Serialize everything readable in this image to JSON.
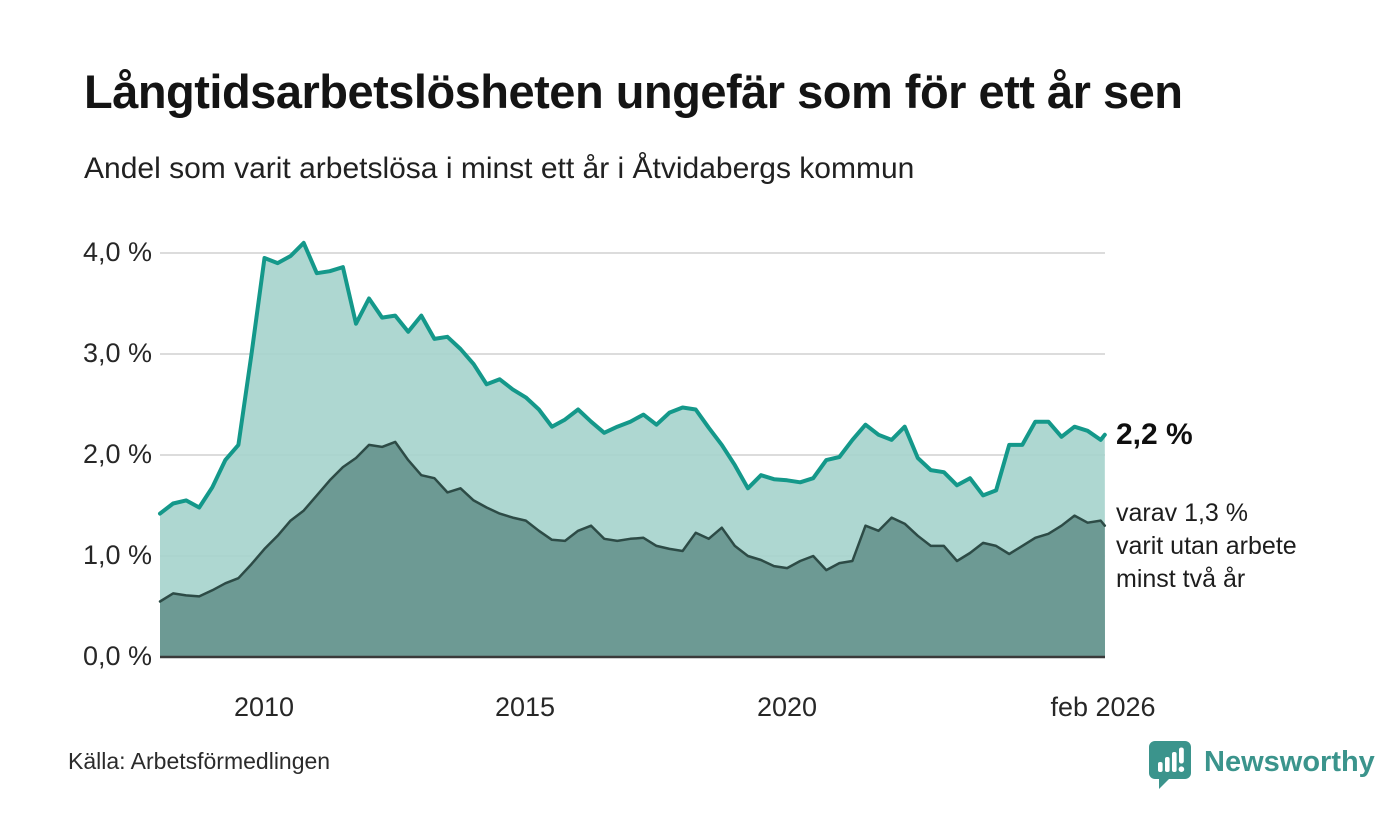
{
  "header": {
    "title": "Långtidsarbetslösheten ungefär som för ett år sen",
    "subtitle": "Andel som varit arbetslösa i minst ett år i Åtvidabergs kommun"
  },
  "annotations": {
    "latest_value": "2,2 %",
    "secondary_line1": "varav 1,3 %",
    "secondary_line2": "varit utan arbete",
    "secondary_line3": "minst två år"
  },
  "footer": {
    "source": "Källa: Arbetsförmedlingen",
    "brand": "Newsworthy"
  },
  "colors": {
    "series1_line": "#14988a",
    "series1_fill": "#a5d3cc",
    "series2_line": "#2d4b46",
    "series2_fill": "#6a9892",
    "gridline": "#dcdcdc",
    "baseline": "#3a3a3a",
    "brand_teal": "#3b948c"
  },
  "chart_data": {
    "type": "area",
    "title": "Långtidsarbetslösheten ungefär som för ett år sen",
    "subtitle": "Andel som varit arbetslösa i minst ett år i Åtvidabergs kommun",
    "unit": "%",
    "grid": "horizontal",
    "legend": "none",
    "x_axis": {
      "range": [
        2008.0,
        2026.083
      ],
      "tick_labels": [
        "2010",
        "2015",
        "2020",
        "feb 2026"
      ],
      "tick_positions": [
        2010,
        2015,
        2020,
        2026.083
      ]
    },
    "y_axis": {
      "range": [
        0,
        4.3
      ],
      "tick_values": [
        0,
        1,
        2,
        3,
        4
      ],
      "tick_labels": [
        "0,0 %",
        "1,0 %",
        "2,0 %",
        "3,0 %",
        "4,0 %"
      ]
    },
    "x": [
      2008.0,
      2008.25,
      2008.5,
      2008.75,
      2009.0,
      2009.25,
      2009.5,
      2009.75,
      2010.0,
      2010.25,
      2010.5,
      2010.75,
      2011.0,
      2011.25,
      2011.5,
      2011.75,
      2012.0,
      2012.25,
      2012.5,
      2012.75,
      2013.0,
      2013.25,
      2013.5,
      2013.75,
      2014.0,
      2014.25,
      2014.5,
      2014.75,
      2015.0,
      2015.25,
      2015.5,
      2015.75,
      2016.0,
      2016.25,
      2016.5,
      2016.75,
      2017.0,
      2017.25,
      2017.5,
      2017.75,
      2018.0,
      2018.25,
      2018.5,
      2018.75,
      2019.0,
      2019.25,
      2019.5,
      2019.75,
      2020.0,
      2020.25,
      2020.5,
      2020.75,
      2021.0,
      2021.25,
      2021.5,
      2021.75,
      2022.0,
      2022.25,
      2022.5,
      2022.75,
      2023.0,
      2023.25,
      2023.5,
      2023.75,
      2024.0,
      2024.25,
      2024.5,
      2024.75,
      2025.0,
      2025.25,
      2025.5,
      2025.75,
      2026.0,
      2026.08
    ],
    "series": [
      {
        "name": "Andel arbetslösa minst ett år",
        "latest_label": "2,2 %",
        "latest_value": 2.2,
        "values": [
          1.42,
          1.52,
          1.55,
          1.48,
          1.68,
          1.95,
          2.1,
          3.0,
          3.95,
          3.9,
          3.97,
          4.1,
          3.8,
          3.82,
          3.86,
          3.3,
          3.55,
          3.36,
          3.38,
          3.22,
          3.38,
          3.15,
          3.17,
          3.05,
          2.9,
          2.7,
          2.75,
          2.65,
          2.57,
          2.45,
          2.28,
          2.35,
          2.45,
          2.33,
          2.22,
          2.28,
          2.33,
          2.4,
          2.3,
          2.42,
          2.47,
          2.45,
          2.27,
          2.1,
          1.9,
          1.67,
          1.8,
          1.76,
          1.75,
          1.73,
          1.77,
          1.95,
          1.98,
          2.15,
          2.3,
          2.2,
          2.15,
          2.28,
          1.97,
          1.85,
          1.83,
          1.7,
          1.77,
          1.6,
          1.65,
          2.1,
          2.1,
          2.33,
          2.33,
          2.18,
          2.28,
          2.24,
          2.15,
          2.2
        ]
      },
      {
        "name": "Andel arbetslösa minst två år",
        "latest_label": "1,3 %",
        "latest_value": 1.3,
        "values": [
          0.55,
          0.63,
          0.61,
          0.6,
          0.66,
          0.73,
          0.78,
          0.92,
          1.07,
          1.2,
          1.35,
          1.45,
          1.6,
          1.75,
          1.88,
          1.97,
          2.1,
          2.08,
          2.13,
          1.95,
          1.8,
          1.77,
          1.63,
          1.67,
          1.55,
          1.48,
          1.42,
          1.38,
          1.35,
          1.25,
          1.16,
          1.15,
          1.25,
          1.3,
          1.17,
          1.15,
          1.17,
          1.18,
          1.1,
          1.07,
          1.05,
          1.23,
          1.17,
          1.28,
          1.1,
          1.0,
          0.96,
          0.9,
          0.88,
          0.95,
          1.0,
          0.86,
          0.93,
          0.95,
          1.3,
          1.25,
          1.38,
          1.32,
          1.2,
          1.1,
          1.1,
          0.95,
          1.03,
          1.13,
          1.1,
          1.02,
          1.1,
          1.18,
          1.22,
          1.3,
          1.4,
          1.33,
          1.35,
          1.3
        ]
      }
    ]
  }
}
